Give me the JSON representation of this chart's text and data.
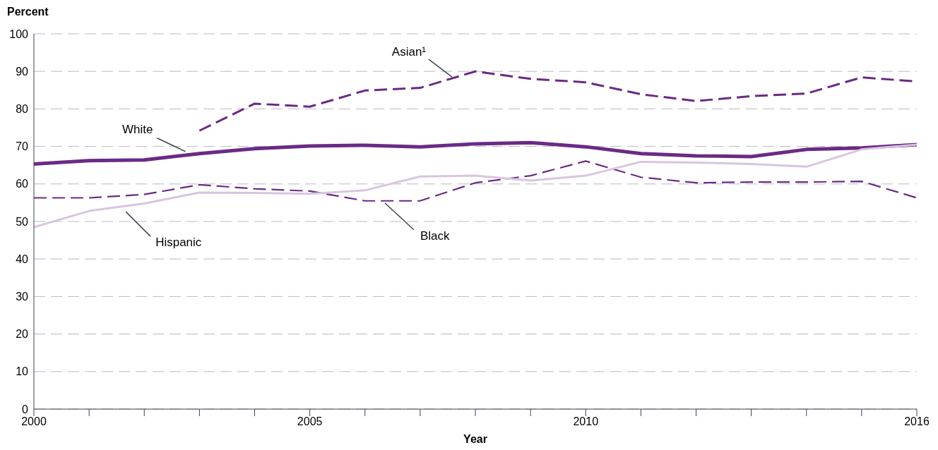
{
  "chart_data": {
    "type": "line",
    "xlabel": "Year",
    "ylabel": "Percent",
    "x": [
      2000,
      2001,
      2002,
      2003,
      2004,
      2005,
      2006,
      2007,
      2008,
      2009,
      2010,
      2011,
      2012,
      2013,
      2014,
      2015,
      2016
    ],
    "series": [
      {
        "name": "White",
        "color": "#6b2a85",
        "line_style": "solid",
        "values": [
          65.3,
          66.2,
          66.4,
          68.1,
          69.4,
          70.1,
          70.3,
          69.9,
          70.7,
          71.0,
          69.9,
          68.1,
          67.5,
          67.3,
          69.2,
          69.6,
          70.5
        ]
      },
      {
        "name": "Asian¹",
        "color": "#6b2a85",
        "line_style": "dashed",
        "values": [
          null,
          null,
          null,
          74.2,
          81.4,
          80.6,
          84.9,
          85.6,
          90.0,
          88.0,
          87.1,
          83.9,
          82.1,
          83.4,
          84.1,
          88.4,
          87.3
        ]
      },
      {
        "name": "Black",
        "color": "#6b2a85",
        "line_style": "dashed",
        "values": [
          56.3,
          56.3,
          57.2,
          59.8,
          58.7,
          58.1,
          55.5,
          55.5,
          60.3,
          62.2,
          66.1,
          61.8,
          60.3,
          60.5,
          60.5,
          60.7,
          56.3
        ]
      },
      {
        "name": "Hispanic",
        "color": "#d8c5e0",
        "line_style": "solid",
        "values": [
          48.5,
          52.8,
          54.8,
          57.7,
          57.6,
          57.4,
          58.3,
          62.0,
          62.2,
          60.9,
          62.2,
          65.9,
          65.7,
          65.3,
          64.6,
          69.2,
          70.5
        ]
      }
    ],
    "xlim": [
      2000,
      2016
    ],
    "xticks": [
      2000,
      {
        "value": 2001,
        "label": null
      },
      {
        "value": 2002,
        "label": null
      },
      {
        "value": 2003,
        "label": null
      },
      {
        "value": 2004,
        "label": null
      },
      2005,
      {
        "value": 2006,
        "label": null
      },
      {
        "value": 2007,
        "label": null
      },
      {
        "value": 2008,
        "label": null
      },
      {
        "value": 2009,
        "label": null
      },
      2010,
      {
        "value": 2011,
        "label": null
      },
      {
        "value": 2012,
        "label": null
      },
      {
        "value": 2013,
        "label": null
      },
      {
        "value": 2014,
        "label": null
      },
      {
        "value": 2015,
        "label": null
      },
      2016
    ],
    "ylim": [
      0,
      100
    ],
    "yticks": [
      0,
      10,
      20,
      30,
      40,
      50,
      60,
      70,
      80,
      90,
      100
    ],
    "grid": "y",
    "legend": false,
    "marker": "none"
  }
}
